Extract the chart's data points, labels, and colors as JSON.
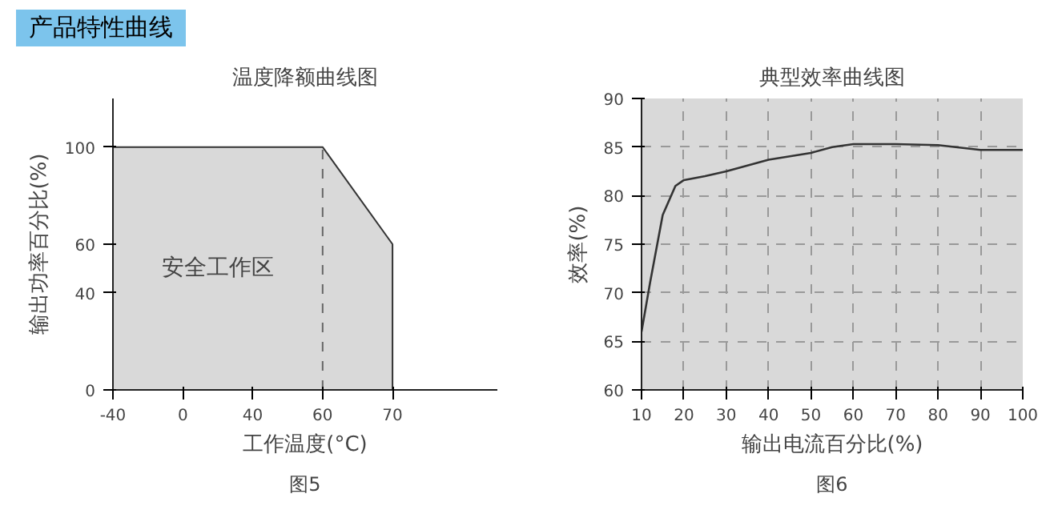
{
  "chart_data": [
    {
      "type": "other",
      "title": "产品特性曲线",
      "color": "#7cc4ec"
    },
    {
      "type": "area",
      "title": "温度降额曲线图",
      "xlabel": "工作温度(°C)",
      "ylabel": "输出功率百分比(%)",
      "categories": [
        "-40",
        "0",
        "40",
        "60",
        "70"
      ],
      "values": [
        100,
        100,
        100,
        100,
        60
      ],
      "color": "#d9d9d9",
      "ylim": [
        0,
        120
      ],
      "yticks": [
        0,
        40,
        60,
        100
      ],
      "ref_lines": [
        {
          "axis": "x",
          "value": "60",
          "line_style": "dashed",
          "color": "#666666"
        }
      ],
      "annotations": [
        "安全工作区",
        "图5"
      ],
      "grid": false
    },
    {
      "type": "line",
      "title": "典型效率曲线图",
      "xlabel": "输出电流百分比(%)",
      "ylabel": "效率(%)",
      "x": [
        10,
        12,
        15,
        18,
        20,
        25,
        30,
        40,
        50,
        55,
        60,
        70,
        80,
        90,
        100
      ],
      "values": [
        66,
        71,
        78,
        81,
        81.6,
        82,
        82.5,
        83.7,
        84.4,
        85,
        85.3,
        85.3,
        85.2,
        84.7,
        84.7
      ],
      "color": "#333333",
      "xlim": [
        10,
        100
      ],
      "ylim": [
        60,
        90
      ],
      "xticks": [
        10,
        20,
        30,
        40,
        50,
        60,
        70,
        80,
        90,
        100
      ],
      "yticks": [
        60,
        65,
        70,
        75,
        80,
        85,
        90
      ],
      "grid": true,
      "line_style": "solid",
      "marker": "none",
      "annotations": [
        "图6"
      ]
    }
  ]
}
